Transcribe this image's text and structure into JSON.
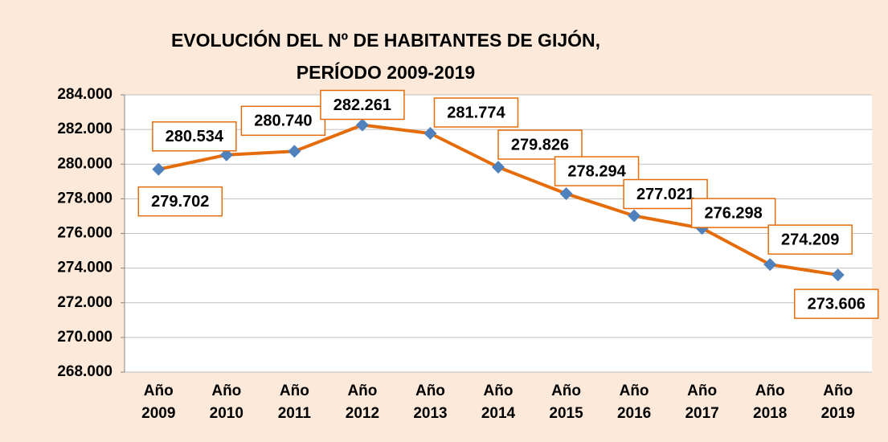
{
  "chart_data": {
    "type": "line",
    "title": [
      "EVOLUCIÓN DEL Nº DE HABITANTES DE GIJÓN,",
      "PERÍODO 2009-2019"
    ],
    "categories": [
      "Año 2009",
      "Año 2010",
      "Año 2011",
      "Año 2012",
      "Año 2013",
      "Año 2014",
      "Año 2015",
      "Año 2016",
      "Año 2017",
      "Año 2018",
      "Año 2019"
    ],
    "series": [
      {
        "name": "Habitantes",
        "color": "#e46c0a",
        "marker_color": "#4f81bd",
        "values": [
          279702,
          280534,
          280740,
          282261,
          281774,
          279826,
          278294,
          277021,
          276298,
          274209,
          273606
        ],
        "value_labels": [
          "279.702",
          "280.534",
          "280.740",
          "282.261",
          "281.774",
          "279.826",
          "278.294",
          "277.021",
          "276.298",
          "274.209",
          "273.606"
        ]
      }
    ],
    "ylim": [
      268000,
      284000
    ],
    "yticks": [
      {
        "value": 268000,
        "label": "268.000"
      },
      {
        "value": 270000,
        "label": "270.000"
      },
      {
        "value": 272000,
        "label": "272.000"
      },
      {
        "value": 274000,
        "label": "274.000"
      },
      {
        "value": 276000,
        "label": "276.000"
      },
      {
        "value": 278000,
        "label": "278.000"
      },
      {
        "value": 280000,
        "label": "280.000"
      },
      {
        "value": 282000,
        "label": "282.000"
      },
      {
        "value": 284000,
        "label": "284.000"
      }
    ],
    "grid": true
  }
}
